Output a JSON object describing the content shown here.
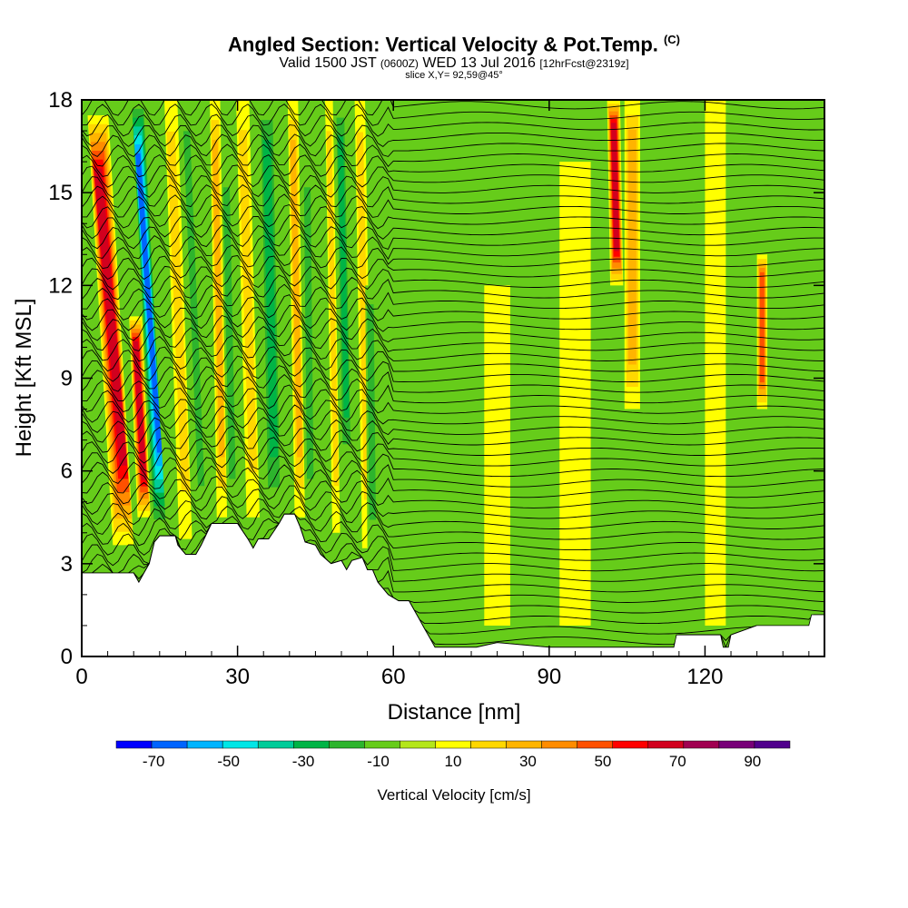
{
  "header": {
    "title": "Angled Section: Vertical Velocity & Pot.Temp.",
    "title_unit": "(C)",
    "valid_prefix": "Valid 1500 JST",
    "valid_utc": "(0600Z)",
    "valid_date": "WED 13 Jul 2016",
    "forecast": "[12hrFcst@2319z]",
    "slice": "slice X,Y= 92,59@45°"
  },
  "chart_data": {
    "type": "heatmap",
    "xlabel": "Distance [nm]",
    "ylabel": "Height [Kft MSL]",
    "xlim": [
      0,
      143
    ],
    "ylim": [
      0,
      18
    ],
    "x_ticks": [
      0,
      30,
      60,
      90,
      120
    ],
    "y_ticks": [
      0,
      3,
      6,
      9,
      12,
      15,
      18
    ],
    "colorbar": {
      "label": "Vertical Velocity [cm/s]",
      "tick_labels": [
        "-70",
        "-50",
        "-30",
        "-10",
        "10",
        "30",
        "50",
        "70",
        "90"
      ],
      "tick_values": [
        -70,
        -50,
        -30,
        -10,
        10,
        30,
        50,
        70,
        90
      ],
      "range": [
        -80,
        100
      ],
      "colors": [
        "#0000ff",
        "#0064ff",
        "#00b4ff",
        "#00e6e6",
        "#00cc99",
        "#00b446",
        "#2db42d",
        "#66cc1a",
        "#b4e61a",
        "#ffff00",
        "#ffd700",
        "#ffb400",
        "#ff8c00",
        "#ff5000",
        "#ff0000",
        "#d2001e",
        "#a00050",
        "#780078",
        "#50008c"
      ]
    },
    "terrain_kft": [
      [
        0,
        2.7
      ],
      [
        10,
        2.7
      ],
      [
        11,
        2.4
      ],
      [
        12,
        2.7
      ],
      [
        13,
        3.0
      ],
      [
        14,
        3.7
      ],
      [
        15,
        3.9
      ],
      [
        18,
        3.9
      ],
      [
        18.5,
        3.6
      ],
      [
        20,
        3.3
      ],
      [
        22,
        3.3
      ],
      [
        23,
        3.6
      ],
      [
        25,
        4.3
      ],
      [
        30,
        4.3
      ],
      [
        32,
        3.8
      ],
      [
        33,
        3.5
      ],
      [
        34,
        3.8
      ],
      [
        36,
        3.8
      ],
      [
        38,
        4.3
      ],
      [
        39,
        4.6
      ],
      [
        41,
        4.6
      ],
      [
        42,
        4.2
      ],
      [
        43,
        3.7
      ],
      [
        45,
        3.6
      ],
      [
        46,
        3.3
      ],
      [
        48,
        3.0
      ],
      [
        50,
        3.1
      ],
      [
        51,
        2.8
      ],
      [
        52,
        3.1
      ],
      [
        54,
        3.2
      ],
      [
        55,
        2.8
      ],
      [
        56,
        2.8
      ],
      [
        57,
        2.4
      ],
      [
        58,
        2.2
      ],
      [
        59,
        2.0
      ],
      [
        61,
        1.8
      ],
      [
        63,
        1.8
      ],
      [
        64,
        1.5
      ],
      [
        65,
        1.2
      ],
      [
        66,
        0.9
      ],
      [
        67,
        0.6
      ],
      [
        68,
        0.3
      ],
      [
        76,
        0.3
      ],
      [
        80,
        0.45
      ],
      [
        90,
        0.3
      ],
      [
        114,
        0.3
      ],
      [
        114.5,
        0.7
      ],
      [
        118,
        0.7
      ],
      [
        123,
        0.7
      ],
      [
        123.5,
        0.3
      ],
      [
        124.5,
        0.3
      ],
      [
        125,
        0.7
      ],
      [
        130,
        1.0
      ],
      [
        140,
        1.0
      ],
      [
        140.5,
        1.35
      ],
      [
        143,
        1.35
      ]
    ],
    "velocity_features": [
      {
        "x": 8,
        "width": 4,
        "value": 70,
        "base": 3.6,
        "top": 17.5,
        "tilt": -0.35
      },
      {
        "x": 12,
        "width": 2.5,
        "value": 70,
        "base": 4.5,
        "top": 11,
        "tilt": -0.25
      },
      {
        "x": 15,
        "width": 2.5,
        "value": -70,
        "base": 4.0,
        "top": 18,
        "tilt": -0.3
      },
      {
        "x": 20,
        "width": 2.5,
        "value": 20,
        "base": 3.8,
        "top": 18,
        "tilt": -0.2
      },
      {
        "x": 23,
        "width": 2.0,
        "value": -20,
        "base": 4.0,
        "top": 18,
        "tilt": -0.2
      },
      {
        "x": 27,
        "width": 2.0,
        "value": 35,
        "base": 4.5,
        "top": 18,
        "tilt": -0.1
      },
      {
        "x": 29,
        "width": 2.0,
        "value": -20,
        "base": 4.5,
        "top": 16,
        "tilt": -0.1
      },
      {
        "x": 33,
        "width": 2.5,
        "value": 25,
        "base": 4.5,
        "top": 18,
        "tilt": -0.15
      },
      {
        "x": 37,
        "width": 3.0,
        "value": -35,
        "base": 4.5,
        "top": 18,
        "tilt": -0.1
      },
      {
        "x": 42,
        "width": 2.0,
        "value": 30,
        "base": 4.5,
        "top": 18,
        "tilt": -0.1
      },
      {
        "x": 44,
        "width": 2.0,
        "value": -20,
        "base": 4.5,
        "top": 16,
        "tilt": -0.05
      },
      {
        "x": 49,
        "width": 1.5,
        "value": 25,
        "base": 4.0,
        "top": 18,
        "tilt": -0.1
      },
      {
        "x": 51,
        "width": 2.0,
        "value": -30,
        "base": 6.0,
        "top": 18,
        "tilt": -0.1
      },
      {
        "x": 55,
        "width": 2.0,
        "value": 20,
        "base": 3.5,
        "top": 18,
        "tilt": -0.1
      },
      {
        "x": 56,
        "width": 2.0,
        "value": -20,
        "base": 3.5,
        "top": 12,
        "tilt": -0.05
      },
      {
        "x": 103,
        "width": 2.5,
        "value": 70,
        "base": 12,
        "top": 18,
        "tilt": -0.1
      },
      {
        "x": 106,
        "width": 3.0,
        "value": 30,
        "base": 8,
        "top": 18,
        "tilt": 0
      },
      {
        "x": 131,
        "width": 2.0,
        "value": 55,
        "base": 8,
        "top": 13,
        "tilt": 0
      },
      {
        "x": 95,
        "width": 6.0,
        "value": 10,
        "base": 1,
        "top": 16,
        "tilt": 0
      },
      {
        "x": 80,
        "width": 5.0,
        "value": 10,
        "base": 1,
        "top": 12,
        "tilt": 0
      },
      {
        "x": 122,
        "width": 4.0,
        "value": 10,
        "base": 1,
        "top": 18,
        "tilt": 0
      },
      {
        "x": 3,
        "width": 2.0,
        "value": -15,
        "base": 2.7,
        "top": 5,
        "tilt": 0
      }
    ],
    "theta_contours_c": [
      34,
      35,
      36,
      37,
      38,
      39,
      40,
      41,
      42,
      43,
      44,
      45,
      46,
      47,
      48,
      49,
      50,
      51,
      52,
      53,
      54,
      55,
      56,
      57,
      58,
      59,
      60,
      61,
      62,
      63,
      64,
      65,
      66,
      67,
      68,
      69,
      70,
      71,
      72,
      73,
      74,
      75,
      76,
      77,
      78,
      79,
      80,
      81,
      82,
      83,
      84,
      85,
      86
    ]
  }
}
